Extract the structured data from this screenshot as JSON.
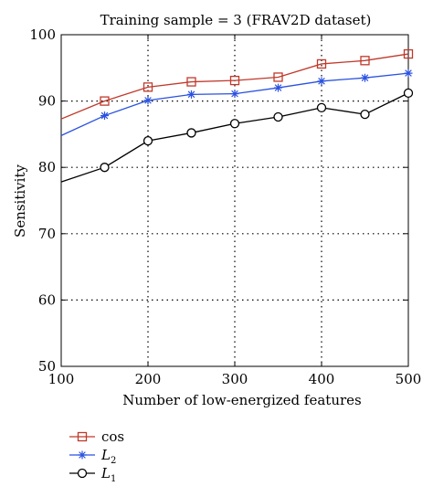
{
  "chart_data": {
    "type": "line",
    "title": "Training sample = 3 (FRAV2D dataset)",
    "xlabel": "Number of low-energized features",
    "ylabel": "Sensitivity",
    "xlim": [
      100,
      500
    ],
    "ylim": [
      50,
      100
    ],
    "xticks": [
      100,
      200,
      300,
      400,
      500
    ],
    "yticks": [
      50,
      60,
      70,
      80,
      90,
      100
    ],
    "grid": true,
    "legend_position": "bottom-left, below plot",
    "x": [
      100,
      150,
      200,
      250,
      300,
      350,
      400,
      450,
      500
    ],
    "series": [
      {
        "name": "cos",
        "color": "#c0392b",
        "marker": "square",
        "values": [
          87.3,
          90.0,
          92.1,
          92.9,
          93.1,
          93.6,
          95.6,
          96.1,
          97.1
        ]
      },
      {
        "name": "L2",
        "name_base": "L",
        "name_sub": "2",
        "color": "#2a52e0",
        "marker": "star",
        "values": [
          84.8,
          87.8,
          90.1,
          91.0,
          91.1,
          92.0,
          93.0,
          93.5,
          94.2
        ]
      },
      {
        "name": "L1",
        "name_base": "L",
        "name_sub": "1",
        "color": "#000000",
        "marker": "circle",
        "values": [
          77.8,
          80.0,
          84.0,
          85.2,
          86.6,
          87.6,
          89.0,
          88.0,
          91.2
        ]
      }
    ]
  }
}
